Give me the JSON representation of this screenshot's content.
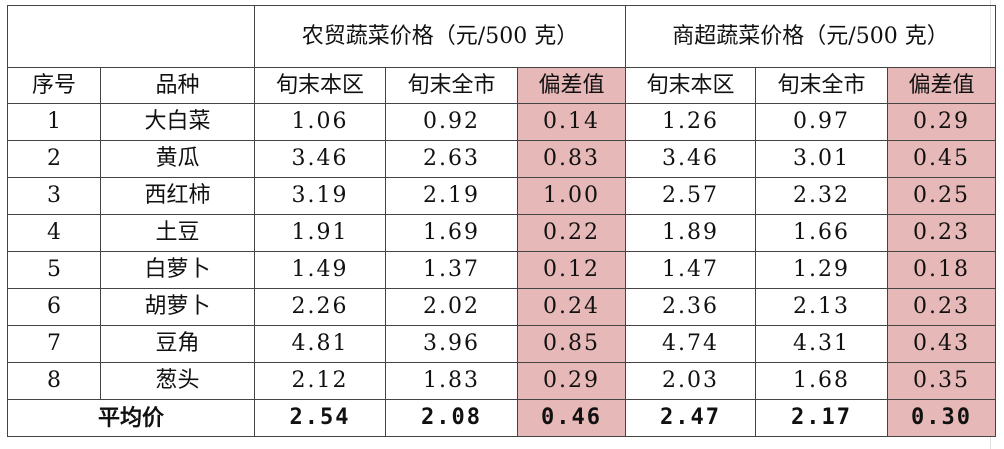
{
  "table": {
    "group_headers": {
      "farmers_market": "农贸蔬菜价格（元/500 克）",
      "supermarket": "商超蔬菜价格（元/500 克）"
    },
    "columns": [
      "序号",
      "品种",
      "旬末本区",
      "旬末全市",
      "偏差值",
      "旬末本区",
      "旬末全市",
      "偏差值"
    ],
    "rows": [
      [
        "1",
        "大白菜",
        "1.06",
        "0.92",
        "0.14",
        "1.26",
        "0.97",
        "0.29"
      ],
      [
        "2",
        "黄瓜",
        "3.46",
        "2.63",
        "0.83",
        "3.46",
        "3.01",
        "0.45"
      ],
      [
        "3",
        "西红柿",
        "3.19",
        "2.19",
        "1.00",
        "2.57",
        "2.32",
        "0.25"
      ],
      [
        "4",
        "土豆",
        "1.91",
        "1.69",
        "0.22",
        "1.89",
        "1.66",
        "0.23"
      ],
      [
        "5",
        "白萝卜",
        "1.49",
        "1.37",
        "0.12",
        "1.47",
        "1.29",
        "0.18"
      ],
      [
        "6",
        "胡萝卜",
        "2.26",
        "2.02",
        "0.24",
        "2.36",
        "2.13",
        "0.23"
      ],
      [
        "7",
        "豆角",
        "4.81",
        "3.96",
        "0.85",
        "4.74",
        "4.31",
        "0.43"
      ],
      [
        "8",
        "葱头",
        "2.12",
        "1.83",
        "0.29",
        "2.03",
        "1.68",
        "0.35"
      ]
    ],
    "average": {
      "label": "平均价",
      "values": [
        "2.54",
        "2.08",
        "0.46",
        "2.47",
        "2.17",
        "0.30"
      ]
    },
    "highlight_color": "#e6b8b7"
  }
}
